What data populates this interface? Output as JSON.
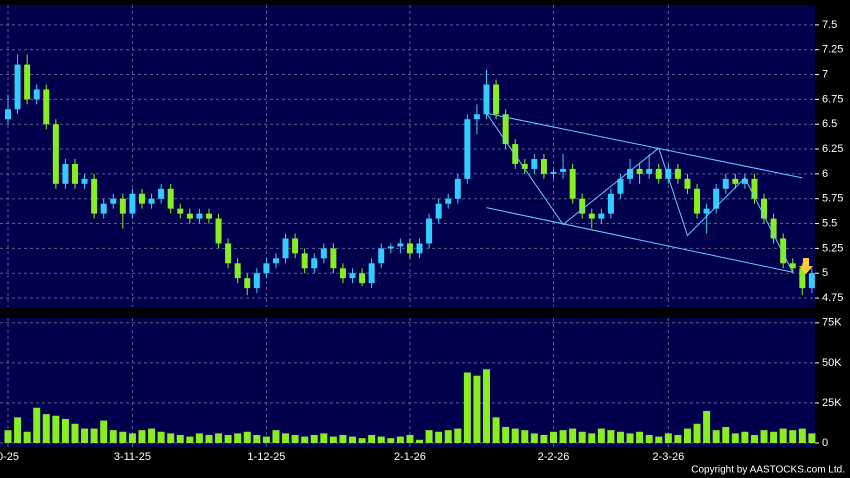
{
  "chart_data": [
    {
      "type": "candlestick",
      "up_color": "#33ccff",
      "down_color": "#88ee22",
      "trend_color": "#66ccff",
      "ylim": [
        4.66,
        7.7
      ],
      "yticks": [
        4.75,
        5,
        5.25,
        5.5,
        5.75,
        6,
        6.25,
        6.5,
        6.75,
        7,
        7.25,
        7.5
      ],
      "grid": true,
      "categories": [
        "0-25",
        null,
        null,
        null,
        null,
        null,
        null,
        null,
        null,
        null,
        null,
        null,
        null,
        "3-11-25",
        null,
        null,
        null,
        null,
        null,
        null,
        null,
        null,
        null,
        null,
        null,
        null,
        null,
        "1-12-25",
        null,
        null,
        null,
        null,
        null,
        null,
        null,
        null,
        null,
        null,
        null,
        null,
        null,
        null,
        "2-1-26",
        null,
        null,
        null,
        null,
        null,
        null,
        null,
        null,
        null,
        null,
        null,
        null,
        null,
        null,
        "2-2-26",
        null,
        null,
        null,
        null,
        null,
        null,
        null,
        null,
        null,
        null,
        null,
        "2-3-26",
        null,
        null,
        null,
        null,
        null,
        null,
        null,
        null,
        null,
        null,
        null,
        null,
        null,
        null,
        null
      ],
      "ohlc": [
        [
          6.55,
          6.8,
          6.5,
          6.65
        ],
        [
          6.65,
          7.2,
          6.6,
          7.1
        ],
        [
          7.1,
          7.2,
          6.7,
          6.75
        ],
        [
          6.75,
          6.9,
          6.7,
          6.85
        ],
        [
          6.85,
          6.9,
          6.45,
          6.5
        ],
        [
          6.5,
          6.55,
          5.85,
          5.9
        ],
        [
          5.9,
          6.15,
          5.85,
          6.1
        ],
        [
          6.1,
          6.15,
          5.85,
          5.9
        ],
        [
          5.9,
          6.0,
          5.85,
          5.95
        ],
        [
          5.95,
          6.0,
          5.55,
          5.6
        ],
        [
          5.6,
          5.75,
          5.55,
          5.7
        ],
        [
          5.7,
          5.8,
          5.65,
          5.75
        ],
        [
          5.75,
          5.8,
          5.45,
          5.6
        ],
        [
          5.6,
          5.85,
          5.55,
          5.8
        ],
        [
          5.8,
          5.85,
          5.65,
          5.7
        ],
        [
          5.7,
          5.8,
          5.65,
          5.75
        ],
        [
          5.75,
          5.9,
          5.7,
          5.85
        ],
        [
          5.85,
          5.9,
          5.6,
          5.65
        ],
        [
          5.65,
          5.7,
          5.55,
          5.6
        ],
        [
          5.6,
          5.65,
          5.5,
          5.55
        ],
        [
          5.55,
          5.65,
          5.5,
          5.6
        ],
        [
          5.6,
          5.65,
          5.5,
          5.55
        ],
        [
          5.55,
          5.6,
          5.25,
          5.3
        ],
        [
          5.3,
          5.35,
          5.05,
          5.1
        ],
        [
          5.1,
          5.15,
          4.9,
          4.95
        ],
        [
          4.95,
          5.0,
          4.78,
          4.85
        ],
        [
          4.85,
          5.05,
          4.8,
          5.0
        ],
        [
          5.0,
          5.15,
          4.95,
          5.1
        ],
        [
          5.1,
          5.2,
          5.05,
          5.15
        ],
        [
          5.15,
          5.4,
          5.1,
          5.35
        ],
        [
          5.35,
          5.4,
          5.15,
          5.2
        ],
        [
          5.2,
          5.25,
          5.0,
          5.05
        ],
        [
          5.05,
          5.2,
          5.0,
          5.15
        ],
        [
          5.15,
          5.3,
          5.1,
          5.25
        ],
        [
          5.25,
          5.3,
          5.0,
          5.05
        ],
        [
          5.05,
          5.1,
          4.9,
          4.95
        ],
        [
          4.95,
          5.05,
          4.9,
          5.0
        ],
        [
          5.0,
          5.05,
          4.87,
          4.9
        ],
        [
          4.9,
          5.15,
          4.85,
          5.1
        ],
        [
          5.1,
          5.3,
          5.05,
          5.25
        ],
        [
          5.25,
          5.3,
          5.2,
          5.27
        ],
        [
          5.27,
          5.35,
          5.2,
          5.3
        ],
        [
          5.3,
          5.35,
          5.15,
          5.2
        ],
        [
          5.2,
          5.35,
          5.15,
          5.3
        ],
        [
          5.3,
          5.6,
          5.25,
          5.55
        ],
        [
          5.55,
          5.75,
          5.5,
          5.7
        ],
        [
          5.7,
          5.8,
          5.65,
          5.75
        ],
        [
          5.75,
          6.0,
          5.7,
          5.95
        ],
        [
          5.95,
          6.6,
          5.9,
          6.55
        ],
        [
          6.55,
          6.7,
          6.4,
          6.6
        ],
        [
          6.6,
          7.05,
          6.55,
          6.9
        ],
        [
          6.9,
          6.95,
          6.55,
          6.6
        ],
        [
          6.6,
          6.65,
          6.25,
          6.3
        ],
        [
          6.3,
          6.35,
          6.05,
          6.1
        ],
        [
          6.1,
          6.15,
          6.0,
          6.05
        ],
        [
          6.05,
          6.2,
          6.0,
          6.15
        ],
        [
          6.15,
          6.2,
          5.95,
          6.0
        ],
        [
          6.0,
          6.05,
          5.95,
          6.02
        ],
        [
          6.02,
          6.2,
          5.95,
          6.05
        ],
        [
          6.05,
          6.1,
          5.7,
          5.75
        ],
        [
          5.75,
          5.8,
          5.55,
          5.6
        ],
        [
          5.6,
          5.65,
          5.45,
          5.55
        ],
        [
          5.55,
          5.65,
          5.5,
          5.6
        ],
        [
          5.6,
          5.85,
          5.55,
          5.8
        ],
        [
          5.8,
          6.0,
          5.75,
          5.95
        ],
        [
          5.95,
          6.15,
          5.9,
          6.05
        ],
        [
          6.05,
          6.1,
          5.9,
          6.0
        ],
        [
          6.0,
          6.2,
          5.95,
          6.05
        ],
        [
          6.05,
          6.1,
          5.9,
          5.95
        ],
        [
          5.95,
          6.1,
          5.9,
          6.05
        ],
        [
          6.05,
          6.1,
          5.9,
          5.95
        ],
        [
          5.95,
          6.0,
          5.8,
          5.85
        ],
        [
          5.85,
          5.9,
          5.55,
          5.6
        ],
        [
          5.6,
          5.7,
          5.4,
          5.65
        ],
        [
          5.65,
          5.9,
          5.6,
          5.85
        ],
        [
          5.85,
          6.0,
          5.8,
          5.95
        ],
        [
          5.95,
          6.0,
          5.85,
          5.9
        ],
        [
          5.9,
          6.0,
          5.85,
          5.95
        ],
        [
          5.95,
          6.0,
          5.7,
          5.75
        ],
        [
          5.75,
          5.8,
          5.5,
          5.55
        ],
        [
          5.55,
          5.6,
          5.3,
          5.35
        ],
        [
          5.35,
          5.4,
          5.05,
          5.1
        ],
        [
          5.1,
          5.15,
          5.0,
          5.05
        ],
        [
          5.05,
          5.1,
          4.78,
          4.85
        ],
        [
          4.85,
          5.05,
          4.8,
          5.0
        ]
      ],
      "trendlines": [
        {
          "x": [
            50,
            83
          ],
          "y": [
            6.61,
            5.96
          ]
        },
        {
          "x": [
            50,
            82
          ],
          "y": [
            5.66,
            5.01
          ]
        },
        {
          "x": [
            50,
            58,
            68,
            71,
            77,
            82
          ],
          "y": [
            6.61,
            5.49,
            6.26,
            5.38,
            5.96,
            5.01
          ]
        }
      ]
    },
    {
      "type": "bar",
      "color": "#88ee22",
      "ylim": [
        -2500,
        78000
      ],
      "yticks": [
        0,
        {
          "value": 25000,
          "label": "25K"
        },
        {
          "value": 50000,
          "label": "50K"
        },
        {
          "value": 75000,
          "label": "75K"
        }
      ],
      "grid": true,
      "values": [
        8000,
        16000,
        7000,
        22000,
        18000,
        17000,
        15000,
        12000,
        9000,
        9000,
        14000,
        8000,
        7000,
        6000,
        8000,
        9000,
        7000,
        6000,
        5000,
        4000,
        6000,
        5000,
        6000,
        5000,
        6000,
        7000,
        5000,
        4000,
        8000,
        6000,
        5000,
        4000,
        5000,
        6000,
        4000,
        5000,
        4000,
        3000,
        5000,
        4000,
        3000,
        4000,
        5000,
        2000,
        8000,
        7000,
        8000,
        9000,
        44000,
        42000,
        46000,
        16000,
        10000,
        9000,
        8000,
        6000,
        5000,
        7000,
        8000,
        9000,
        7000,
        6000,
        9000,
        8000,
        7000,
        6000,
        7000,
        5000,
        4000,
        6000,
        5000,
        9000,
        12000,
        20000,
        8000,
        10000,
        6000,
        7000,
        5000,
        8000,
        7000,
        9000,
        8000,
        9000,
        6000
      ]
    }
  ],
  "footer": "Copyright by AASTOCKS.com Ltd."
}
